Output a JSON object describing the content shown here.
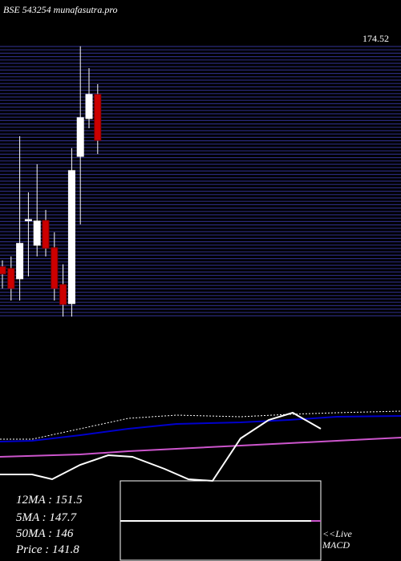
{
  "title": "BSE 543254 munafasutra.pro",
  "price_label": "174.52",
  "chart_data": [
    {
      "type": "candlestick",
      "ylim": [
        85,
        177
      ],
      "colors": {
        "up": "#ffffff",
        "down": "#cc0000"
      },
      "open": [
        101.5,
        100.9,
        97.5,
        116.8,
        108.6,
        116.8,
        107.8,
        95.6,
        89.3,
        138.0,
        150.5,
        158.5
      ],
      "high": [
        103.6,
        104.9,
        144.7,
        126.1,
        135.4,
        120.3,
        112.9,
        102.3,
        140.7,
        174.4,
        167.2,
        161.9
      ],
      "low": [
        94.3,
        90.3,
        90.3,
        98.3,
        104.9,
        104.9,
        90.3,
        85.0,
        85.0,
        115.5,
        147.3,
        138.8
      ],
      "close": [
        99.1,
        94.3,
        109.2,
        117.1,
        116.6,
        107.6,
        94.3,
        89.0,
        133.3,
        150.8,
        158.5,
        143.3
      ]
    },
    {
      "type": "line",
      "xlim": [
        0,
        500
      ],
      "ylim": [
        0,
        100
      ],
      "series": [
        {
          "color": "#ffffff",
          "dashed": true,
          "x": [
            0,
            40,
            100,
            160,
            220,
            300,
            360,
            420,
            500
          ],
          "values": [
            52,
            52,
            65,
            78,
            82,
            80,
            83,
            85,
            87
          ]
        },
        {
          "color": "#0000cc",
          "x": [
            0,
            40,
            100,
            160,
            220,
            300,
            360,
            420,
            500
          ],
          "values": [
            49,
            50,
            57,
            65,
            71,
            73,
            76,
            80,
            81
          ]
        },
        {
          "color": "#cc55cc",
          "x": [
            0,
            100,
            160,
            220,
            300,
            360,
            420,
            500
          ],
          "values": [
            30,
            33,
            37,
            40,
            44,
            47,
            50,
            54
          ]
        },
        {
          "color": "#ffffff",
          "x": [
            0,
            40,
            65,
            100,
            135,
            165,
            205,
            235,
            265,
            300,
            335,
            365,
            400
          ],
          "values": [
            8,
            8,
            2,
            20,
            32,
            30,
            15,
            2,
            0,
            53,
            76,
            85,
            65
          ]
        }
      ]
    }
  ],
  "stats": [
    "12MA : 151.5",
    "5MA : 147.7",
    "50MA : 146",
    "Price   : 141.8"
  ],
  "macd_label": [
    "<<Live",
    "MACD"
  ]
}
